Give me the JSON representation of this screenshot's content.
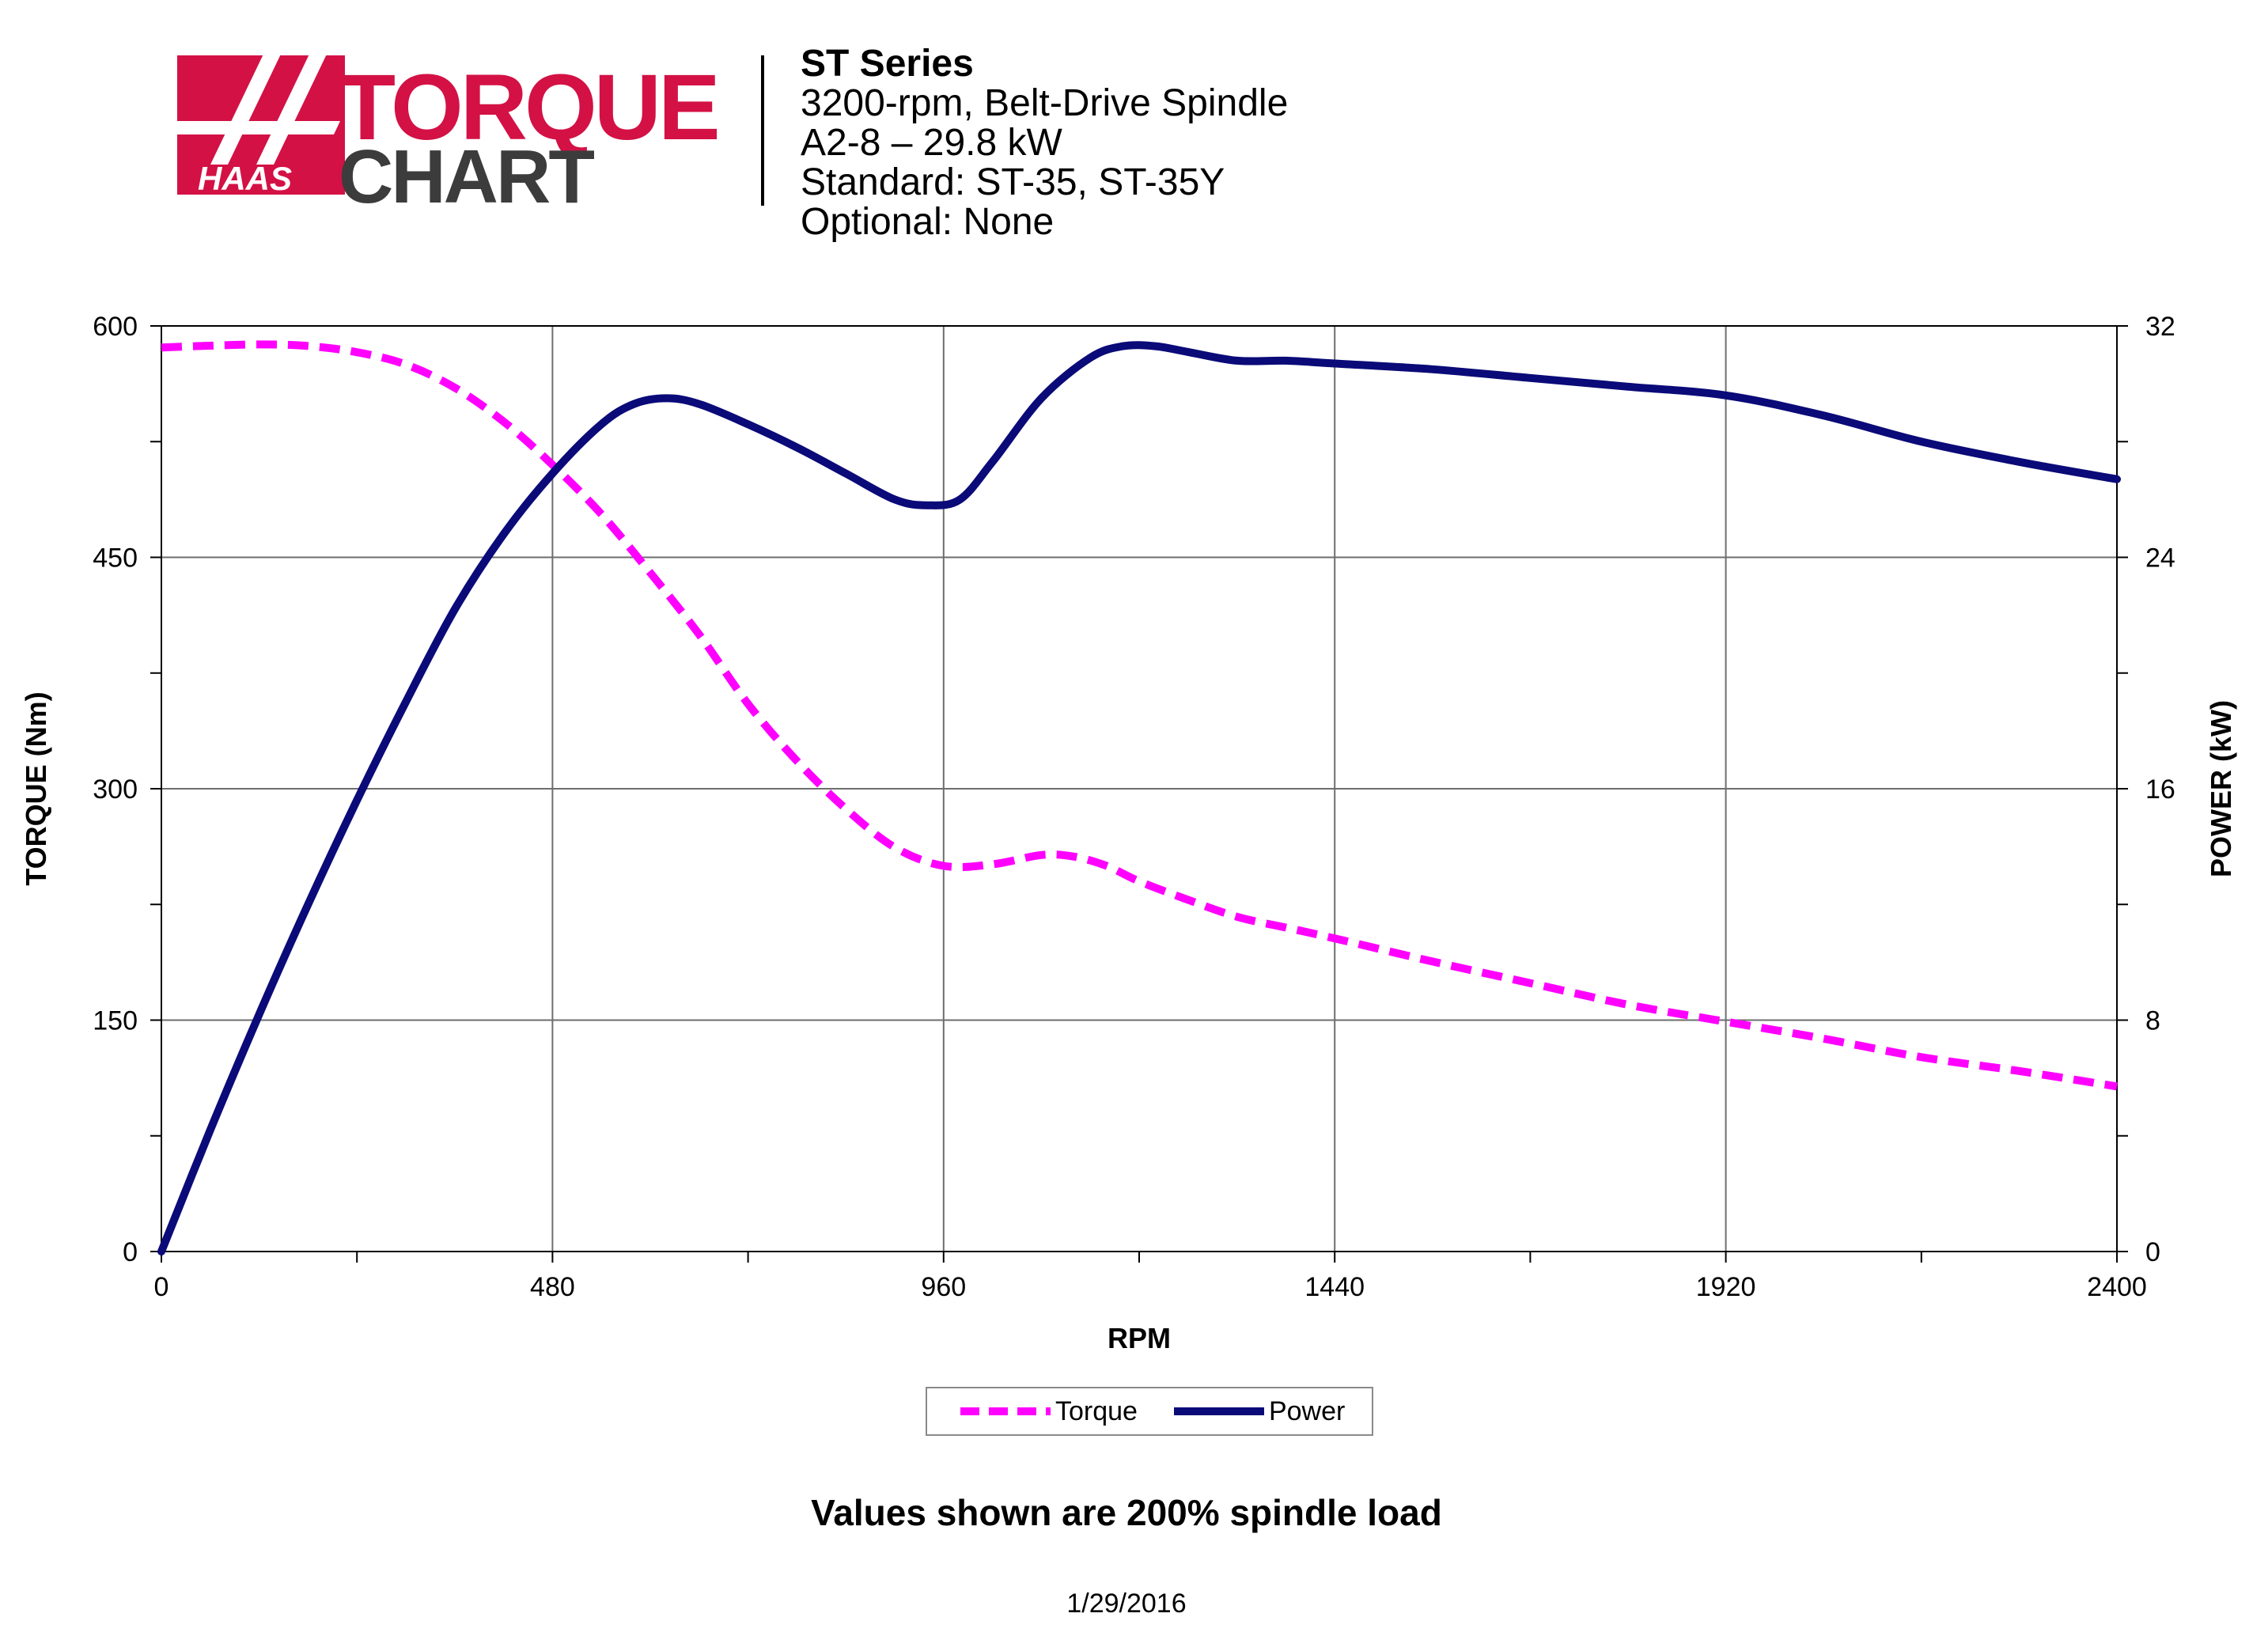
{
  "header": {
    "logo": {
      "brand_text": "HAAS",
      "word1": "TORQUE",
      "word2": "CHART",
      "colors": {
        "red": "#d31145",
        "dark": "#3c3c3c"
      }
    },
    "lines": [
      "ST Series",
      "3200-rpm, Belt-Drive Spindle",
      "A2-8 – 29.8 kW",
      "Standard: ST-35, ST-35Y",
      "Optional: None"
    ]
  },
  "chart_data": {
    "type": "line",
    "xlabel": "RPM",
    "ylabel": "TORQUE (Nm)",
    "y2label": "POWER (kW)",
    "xlim": [
      0,
      2400
    ],
    "ylim": [
      0,
      600
    ],
    "y2lim": [
      0,
      32
    ],
    "xticks": [
      "0",
      "480",
      "960",
      "1440",
      "1920",
      "2400"
    ],
    "yticks": [
      "0",
      "150",
      "300",
      "450",
      "600"
    ],
    "y2ticks": [
      "0",
      "8",
      "16",
      "24",
      "32"
    ],
    "grid": true,
    "legend_position": "bottom-center",
    "series": [
      {
        "name": "Torque",
        "axis": "left",
        "color": "#ff00ff",
        "style": "dashed",
        "x": [
          0,
          50,
          120,
          180,
          240,
          300,
          360,
          420,
          480,
          540,
          600,
          660,
          720,
          780,
          840,
          900,
          960,
          1020,
          1080,
          1120,
          1160,
          1200,
          1260,
          1320,
          1380,
          1440,
          1560,
          1680,
          1800,
          1920,
          2040,
          2160,
          2280,
          2400
        ],
        "values": [
          586,
          587,
          588,
          587,
          583,
          575,
          560,
          538,
          510,
          478,
          440,
          400,
          355,
          318,
          287,
          262,
          250,
          251,
          257,
          256,
          250,
          240,
          228,
          217,
          210,
          203,
          188,
          174,
          160,
          149,
          138,
          126,
          117,
          107
        ]
      },
      {
        "name": "Power",
        "axis": "right",
        "color": "#0a0a78",
        "style": "solid",
        "x": [
          0,
          60,
          120,
          180,
          240,
          300,
          360,
          420,
          480,
          540,
          580,
          620,
          660,
          720,
          780,
          840,
          900,
          940,
          980,
          1020,
          1080,
          1140,
          1180,
          1220,
          1260,
          1320,
          1380,
          1440,
          1560,
          1680,
          1800,
          1920,
          2040,
          2160,
          2280,
          2400
        ],
        "values": [
          0,
          4.2,
          8.2,
          12.0,
          15.6,
          19.0,
          22.2,
          24.8,
          26.9,
          28.6,
          29.3,
          29.5,
          29.3,
          28.6,
          27.8,
          26.9,
          26.0,
          25.8,
          26.0,
          27.3,
          29.5,
          30.9,
          31.3,
          31.3,
          31.1,
          30.8,
          30.8,
          30.7,
          30.5,
          30.2,
          29.9,
          29.6,
          28.9,
          28.0,
          27.3,
          26.7
        ]
      }
    ]
  },
  "footnote": "Values shown are 200% spindle load",
  "date": "1/29/2016"
}
